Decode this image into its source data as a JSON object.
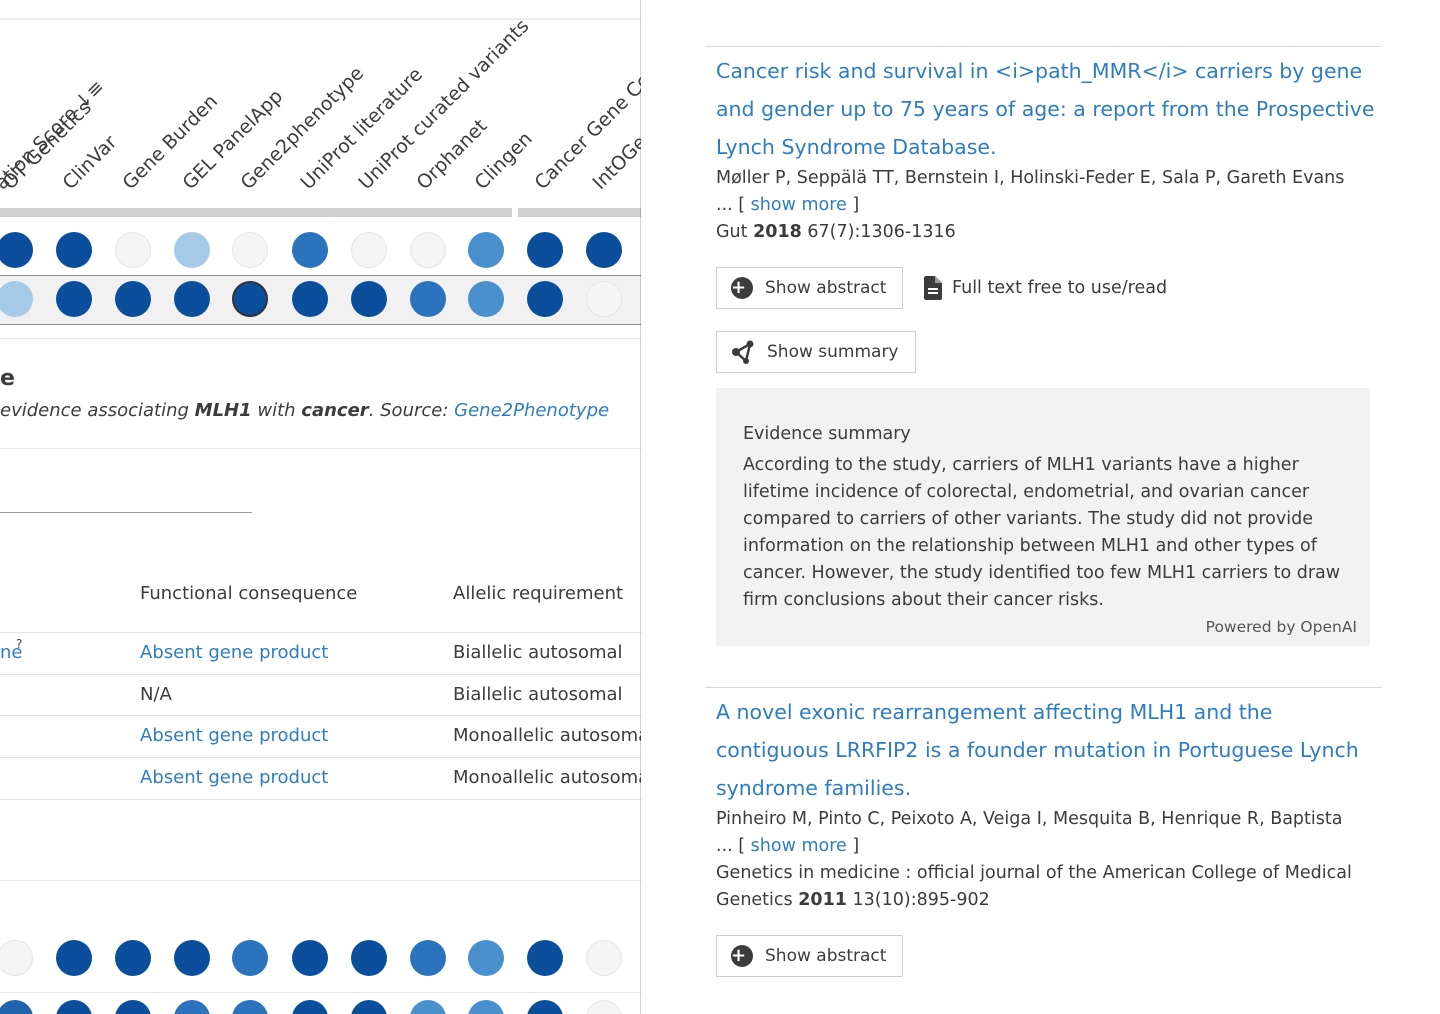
{
  "left_panel": {
    "column_labels": [
      "ation Score ↓≡",
      "OT Genetics",
      "ClinVar",
      "Gene Burden",
      "GEL PanelApp",
      "Gene2phenotype",
      "UniProt literature",
      "UniProt curated variants",
      "Orphanet",
      "Clingen",
      "Cancer Gene Ce",
      "IntOGe"
    ],
    "section_title": "e",
    "section_desc": {
      "part1": "evidence associating ",
      "gene": "MLH1",
      "part2": " with ",
      "disease": "cancer",
      "part3": ". Source: ",
      "source_link": "Gene2Phenotype"
    },
    "table": {
      "headers": [
        "Functional consequence",
        "Allelic requirement"
      ],
      "rows": [
        {
          "first": "ne",
          "sup": "?",
          "consequence": "Absent gene product",
          "consequence_link": true,
          "allelic": "Biallelic autosomal"
        },
        {
          "first": "",
          "sup": "",
          "consequence": "N/A",
          "consequence_link": false,
          "allelic": "Biallelic autosomal"
        },
        {
          "first": "",
          "sup": "",
          "consequence": "Absent gene product",
          "consequence_link": true,
          "allelic": "Monoallelic autosomal"
        },
        {
          "first": "",
          "sup": "",
          "consequence": "Absent gene product",
          "consequence_link": true,
          "allelic": "Monoallelic autosomal"
        }
      ]
    },
    "dot_rows": [
      [
        "#0b4f9c",
        "#0b4f9c",
        "#f5f5f5",
        "#a5cae8",
        "#f5f5f5",
        "#2b74bd",
        "#f5f5f5",
        "#f5f5f5",
        "#4a90cd",
        "#0b4f9c",
        "#0b4f9c"
      ],
      [
        "#a5cae8",
        "#0b4f9c",
        "#0b4f9c",
        "#0b4f9c",
        "#0b4f9c",
        "#0b4f9c",
        "#0b4f9c",
        "#2b74bd",
        "#4a90cd",
        "#0b4f9c",
        "#f5f5f5"
      ],
      [
        "#f5f5f5",
        "#0b4f9c",
        "#0b4f9c",
        "#0b4f9c",
        "#2b74bd",
        "#0b4f9c",
        "#0b4f9c",
        "#2b74bd",
        "#4a90cd",
        "#0b4f9c",
        "#f5f5f5"
      ],
      [
        "#1f63ad",
        "#0b4f9c",
        "#0b4f9c",
        "#2b74bd",
        "#2b74bd",
        "#0b4f9c",
        "#0b4f9c",
        "#4a90cd",
        "#4a90cd",
        "#0b4f9c",
        "#f5f5f5"
      ]
    ]
  },
  "publications": [
    {
      "title": "Cancer risk and survival in <i>path_MMR</i> carriers by gene and gender up to 75 years of age: a report from the Prospective Lynch Syndrome Database.",
      "authors": "Møller P, Seppälä TT, Bernstein I, Holinski-Feder E, Sala P, Gareth Evans",
      "ellipsis": "... [",
      "show_more": "show more",
      "close_bracket": "]",
      "journal": "Gut",
      "year": "2018",
      "citation": "67(7):1306-1316",
      "show_abstract": "Show abstract",
      "fulltext": "Full text free to use/read",
      "show_summary": "Show summary",
      "summary": {
        "heading": "Evidence summary",
        "text": "According to the study, carriers of MLH1 variants have a higher lifetime incidence of colorectal, endometrial, and ovarian cancer compared to carriers of other variants. The study did not provide information on the relationship between MLH1 and other types of cancer. However, the study identified too few MLH1 carriers to draw firm conclusions about their cancer risks.",
        "powered_by": "Powered by OpenAI"
      }
    },
    {
      "title": "A novel exonic rearrangement affecting MLH1 and the contiguous LRRFIP2 is a founder mutation in Portuguese Lynch syndrome families.",
      "authors": "Pinheiro M, Pinto C, Peixoto A, Veiga I, Mesquita B, Henrique R, Baptista",
      "ellipsis": "... [",
      "show_more": "show more",
      "close_bracket": "]",
      "journal": "Genetics in medicine : official journal of the American College of Medical Genetics",
      "year": "2011",
      "citation": "13(10):895-902",
      "show_abstract": "Show abstract"
    }
  ]
}
